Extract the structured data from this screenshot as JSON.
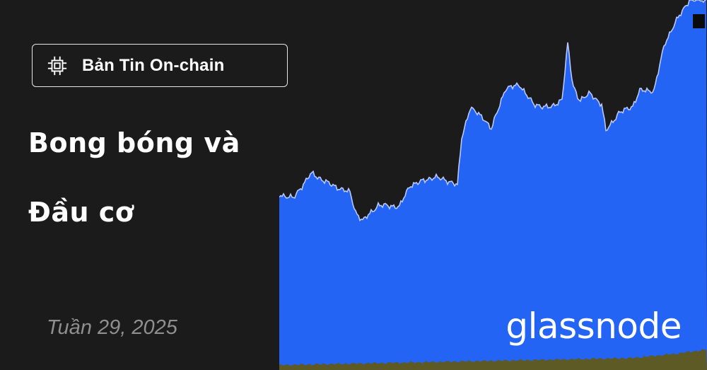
{
  "badge": {
    "label": "Bản Tin On-chain",
    "icon": "chip-icon"
  },
  "title": {
    "line1": "Bong bóng và",
    "line2": "Đầu cơ"
  },
  "date": "Tuần 29, 2025",
  "brand": "glassnode",
  "colors": {
    "background": "#1b1b1c",
    "series_blue": "#2364f5",
    "series_violet": "#c774ee",
    "series_green": "#2b7a25",
    "series_olive": "#5d5a26"
  }
}
